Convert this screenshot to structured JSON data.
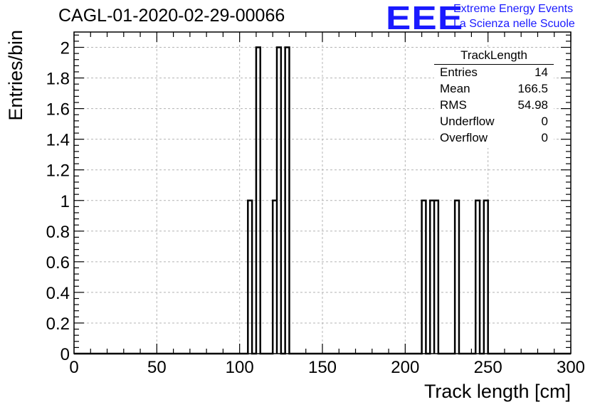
{
  "header": {
    "run_title": "CAGL-01-2020-02-29-00066",
    "logo_text": "EEE",
    "logo_line1": "Extreme Energy Events",
    "logo_line2": "La Scienza nelle Scuole"
  },
  "stats_box": {
    "title": "TrackLength",
    "rows": [
      {
        "key": "Entries",
        "value": "14"
      },
      {
        "key": "Mean",
        "value": "166.5"
      },
      {
        "key": "RMS",
        "value": "54.98"
      },
      {
        "key": "Underflow",
        "value": "0"
      },
      {
        "key": "Overflow",
        "value": "0"
      }
    ]
  },
  "chart_data": {
    "type": "bar",
    "histogram": true,
    "xlabel": "Track length [cm]",
    "ylabel": "Entries/bin",
    "xlim": [
      0,
      300
    ],
    "ylim": [
      0,
      2.1
    ],
    "grid": true,
    "bin_width": 2.5,
    "xticks": [
      "0",
      "50",
      "100",
      "150",
      "200",
      "250",
      "300"
    ],
    "yticks": [
      "0",
      "0.2",
      "0.4",
      "0.6",
      "0.8",
      "1",
      "1.2",
      "1.4",
      "1.6",
      "1.8",
      "2"
    ],
    "bins": [
      {
        "x0": 105,
        "x1": 107.5,
        "count": 1
      },
      {
        "x0": 110,
        "x1": 112.5,
        "count": 2
      },
      {
        "x0": 120,
        "x1": 122.5,
        "count": 1
      },
      {
        "x0": 122.5,
        "x1": 125,
        "count": 2
      },
      {
        "x0": 127.5,
        "x1": 130,
        "count": 2
      },
      {
        "x0": 210,
        "x1": 212.5,
        "count": 1
      },
      {
        "x0": 215,
        "x1": 217.5,
        "count": 1
      },
      {
        "x0": 217.5,
        "x1": 220,
        "count": 1
      },
      {
        "x0": 230,
        "x1": 232.5,
        "count": 1
      },
      {
        "x0": 242.5,
        "x1": 245,
        "count": 1
      },
      {
        "x0": 247.5,
        "x1": 250,
        "count": 1
      }
    ],
    "line_color": "#000000",
    "grid_color": "#b4b4b4"
  }
}
